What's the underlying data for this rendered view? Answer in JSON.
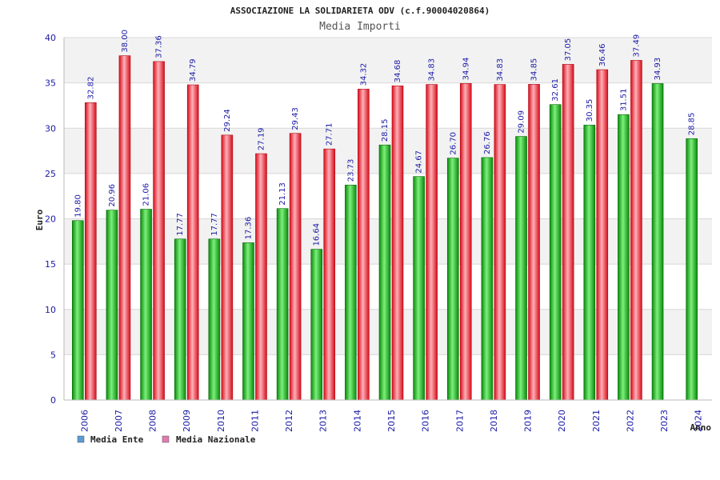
{
  "colors": {
    "ente_dark": "#0a8a0a",
    "ente_light": "#7cf07c",
    "naz_dark": "#d60d1a",
    "naz_light": "#ffb0b8",
    "band": "#f2f2f2",
    "grid": "#d8d8d8",
    "axis_text": "#1a1aa6",
    "legend_ente": "#5b9bd5",
    "legend_naz": "#e07bb0"
  },
  "chart_data": {
    "type": "bar",
    "title": "ASSOCIAZIONE LA SOLIDARIETA ODV (c.f.90004020864)",
    "subtitle": "Media Importi",
    "ylabel": "Euro",
    "xlabel": "Anno",
    "ylim": [
      0,
      40
    ],
    "yticks": [
      0,
      5,
      10,
      15,
      20,
      25,
      30,
      35,
      40
    ],
    "categories": [
      "2006",
      "2007",
      "2008",
      "2009",
      "2010",
      "2011",
      "2012",
      "2013",
      "2014",
      "2015",
      "2016",
      "2017",
      "2018",
      "2019",
      "2020",
      "2021",
      "2022",
      "2023",
      "2024"
    ],
    "series": [
      {
        "name": "Media Ente",
        "values": [
          19.8,
          20.96,
          21.06,
          17.77,
          17.77,
          17.36,
          21.13,
          16.64,
          23.73,
          28.15,
          24.67,
          26.7,
          26.76,
          29.09,
          32.61,
          30.35,
          31.51,
          34.93,
          28.85
        ],
        "labels": [
          "19.80",
          "20.96",
          "21.06",
          "17.77",
          "17.77",
          "17.36",
          "21.13",
          "16.64",
          "23.73",
          "28.15",
          "24.67",
          "26.70",
          "26.76",
          "29.09",
          "32.61",
          "30.35",
          "31.51",
          "34.93",
          "28.85"
        ]
      },
      {
        "name": "Media Nazionale",
        "values": [
          32.82,
          38.0,
          37.36,
          34.79,
          29.24,
          27.19,
          29.43,
          27.71,
          34.32,
          34.68,
          34.83,
          34.94,
          34.83,
          34.85,
          37.05,
          36.46,
          37.49,
          null,
          null
        ],
        "labels": [
          "32.82",
          "38.00",
          "37.36",
          "34.79",
          "29.24",
          "27.19",
          "29.43",
          "27.71",
          "34.32",
          "34.68",
          "34.83",
          "34.94",
          "34.83",
          "34.85",
          "37.05",
          "36.46",
          "37.49",
          null,
          null
        ]
      }
    ],
    "legend": [
      "Media Ente",
      "Media Nazionale"
    ],
    "grid": true
  }
}
